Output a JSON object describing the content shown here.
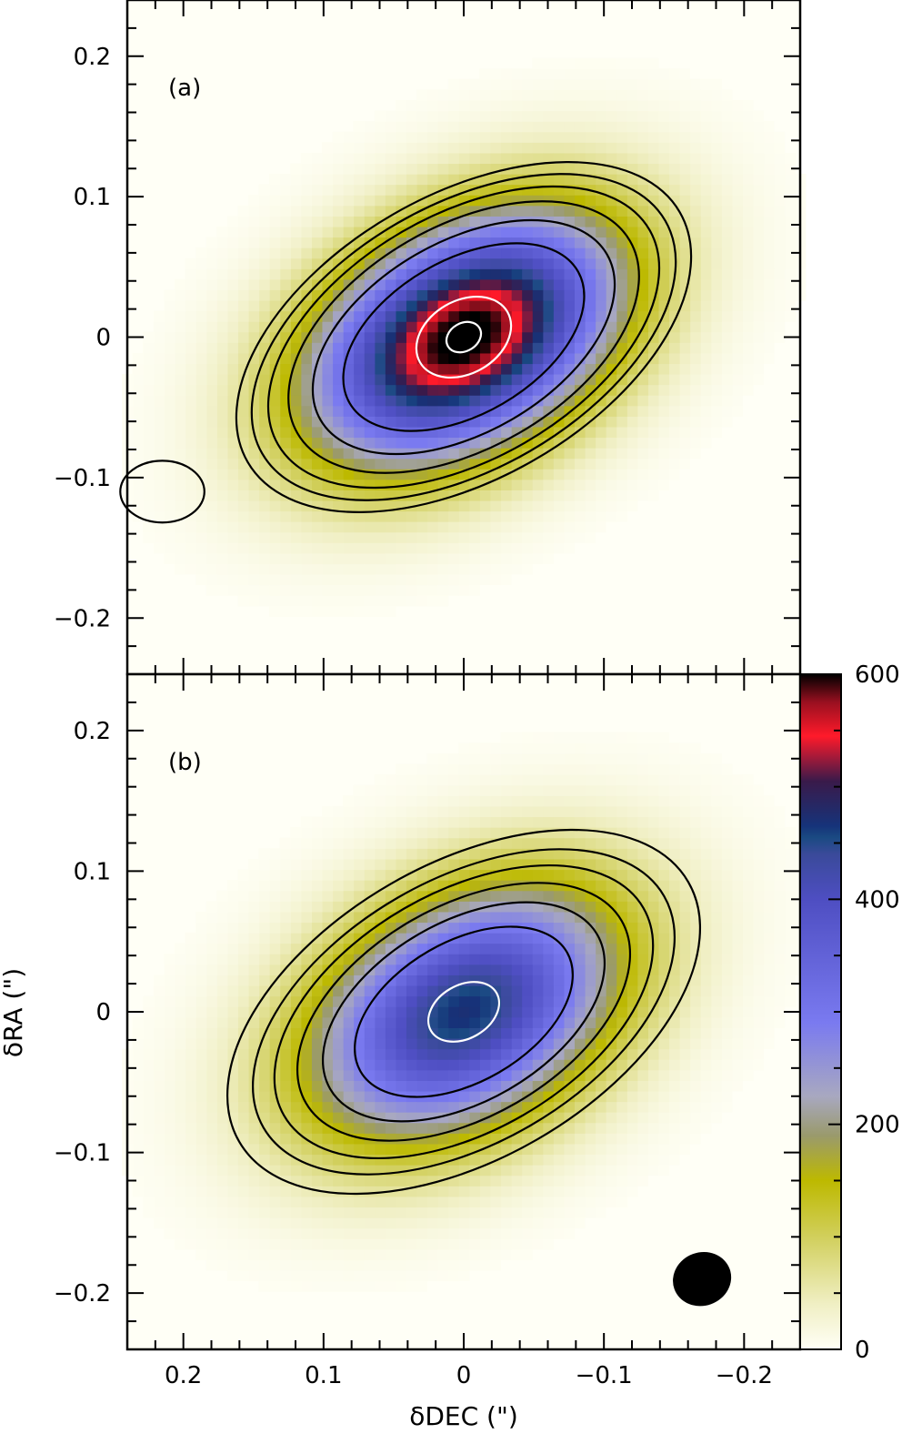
{
  "chart_data": {
    "type": "heatmap",
    "xlabel": "δDEC (\")",
    "ylabel": "δRA (\")",
    "xlim": [
      0.24,
      -0.24
    ],
    "ylim": [
      -0.24,
      0.24
    ],
    "xticks": [
      {
        "v": 0.2,
        "label": "0.2"
      },
      {
        "v": 0.1,
        "label": "0.1"
      },
      {
        "v": 0,
        "label": "0"
      },
      {
        "v": -0.1,
        "label": "−0.1"
      },
      {
        "v": -0.2,
        "label": "−0.2"
      }
    ],
    "yticks": [
      {
        "v": 0.2,
        "label": "0.2"
      },
      {
        "v": 0.1,
        "label": "0.1"
      },
      {
        "v": 0,
        "label": "0"
      },
      {
        "v": -0.1,
        "label": "−0.1"
      },
      {
        "v": -0.2,
        "label": "−0.2"
      }
    ],
    "colorbar": {
      "range": [
        0,
        600
      ],
      "ticks": [
        {
          "v": 0,
          "label": "0"
        },
        {
          "v": 200,
          "label": "200"
        },
        {
          "v": 400,
          "label": "400"
        },
        {
          "v": 600,
          "label": "600"
        }
      ],
      "stops": [
        {
          "v": 0,
          "color": "#fffff6"
        },
        {
          "v": 40,
          "color": "#f0efc4"
        },
        {
          "v": 100,
          "color": "#d1cf5c"
        },
        {
          "v": 150,
          "color": "#bdb900"
        },
        {
          "v": 190,
          "color": "#9a9a6c"
        },
        {
          "v": 225,
          "color": "#a8a8c0"
        },
        {
          "v": 290,
          "color": "#7a7af0"
        },
        {
          "v": 400,
          "color": "#4e4ec2"
        },
        {
          "v": 440,
          "color": "#3a4a9a"
        },
        {
          "v": 455,
          "color": "#1a4a82"
        },
        {
          "v": 465,
          "color": "#16337a"
        },
        {
          "v": 505,
          "color": "#3a1a4a"
        },
        {
          "v": 545,
          "color": "#ff1a2a"
        },
        {
          "v": 575,
          "color": "#9a1020"
        },
        {
          "v": 600,
          "color": "#000000"
        }
      ]
    },
    "panels": [
      {
        "label": "(a)",
        "peak": 620,
        "center": [
          0,
          0
        ],
        "sigma_major": 0.082,
        "sigma_minor": 0.052,
        "pa_deg": 30,
        "contours_black": [
          {
            "a": 0.178,
            "b": 0.101
          },
          {
            "a": 0.166,
            "b": 0.094
          },
          {
            "a": 0.153,
            "b": 0.087
          },
          {
            "a": 0.137,
            "b": 0.079
          },
          {
            "a": 0.118,
            "b": 0.068
          },
          {
            "a": 0.094,
            "b": 0.055
          }
        ],
        "contours_white": [
          {
            "a": 0.036,
            "b": 0.026
          }
        ],
        "core": {
          "a": 0.013,
          "b": 0.01
        },
        "extra_blob": {
          "x": 0.215,
          "y": -0.11,
          "a": 0.03,
          "b": 0.022
        }
      },
      {
        "label": "(b)",
        "peak": 470,
        "center": [
          0,
          0
        ],
        "sigma_major": 0.084,
        "sigma_minor": 0.055,
        "pa_deg": 30,
        "contours_black": [
          {
            "a": 0.185,
            "b": 0.105
          },
          {
            "a": 0.165,
            "b": 0.094
          },
          {
            "a": 0.148,
            "b": 0.085
          },
          {
            "a": 0.13,
            "b": 0.075
          },
          {
            "a": 0.11,
            "b": 0.064
          },
          {
            "a": 0.085,
            "b": 0.05
          }
        ],
        "contours_white": [
          {
            "a": 0.027,
            "b": 0.019
          }
        ],
        "beam": {
          "x": -0.17,
          "y": -0.19,
          "a": 0.021,
          "b": 0.019
        }
      }
    ]
  }
}
